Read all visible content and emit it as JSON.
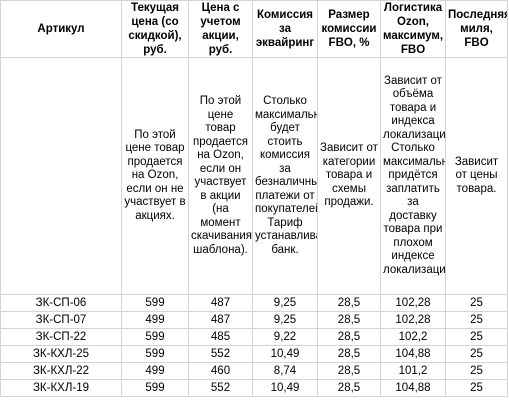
{
  "headers": [
    "Артикул",
    "Текущая цена (со скидкой), руб.",
    "Цена с учетом акции, руб.",
    "Комиссия за эквайринг",
    "Размер комиссии FBO, %",
    "Логистика Ozon, максимум, FBO",
    "Последняя миля, FBO"
  ],
  "descriptions": {
    "col1": "По этой цене товар продается на Ozon, если он не участвует в акциях.",
    "col2": "По этой цене товар продается на Ozon, если он участвует в акции (на момент скачивания шаблона).",
    "col3": "Столько максимально будет стоить комиссия за безналичные платежи от покупателей. Тариф устанавливает банк.",
    "col4": "Зависит от категории товара и схемы продажи.",
    "col5": "Зависит от объёма товара и индекса локализации. Столько максимально придётся заплатить за доставку товара при плохом индексе локализации.",
    "col6": "Зависит от цены товара."
  },
  "rows": [
    {
      "sku": "ЗК-СП-06",
      "price": "599",
      "promo": "487",
      "acq": "9,25",
      "fbo": "28,5",
      "logistics": "102,28",
      "mile": "25"
    },
    {
      "sku": "ЗК-СП-07",
      "price": "499",
      "promo": "487",
      "acq": "9,25",
      "fbo": "28,5",
      "logistics": "102,28",
      "mile": "25"
    },
    {
      "sku": "ЗК-СП-22",
      "price": "599",
      "promo": "485",
      "acq": "9,22",
      "fbo": "28,5",
      "logistics": "102,2",
      "mile": "25"
    },
    {
      "sku": "ЗК-КХЛ-25",
      "price": "599",
      "promo": "552",
      "acq": "10,49",
      "fbo": "28,5",
      "logistics": "104,88",
      "mile": "25"
    },
    {
      "sku": "ЗК-КХЛ-22",
      "price": "499",
      "promo": "460",
      "acq": "8,74",
      "fbo": "28,5",
      "logistics": "101,2",
      "mile": "25"
    },
    {
      "sku": "ЗК-КХЛ-19",
      "price": "599",
      "promo": "552",
      "acq": "10,49",
      "fbo": "28,5",
      "logistics": "104,88",
      "mile": "25"
    }
  ]
}
